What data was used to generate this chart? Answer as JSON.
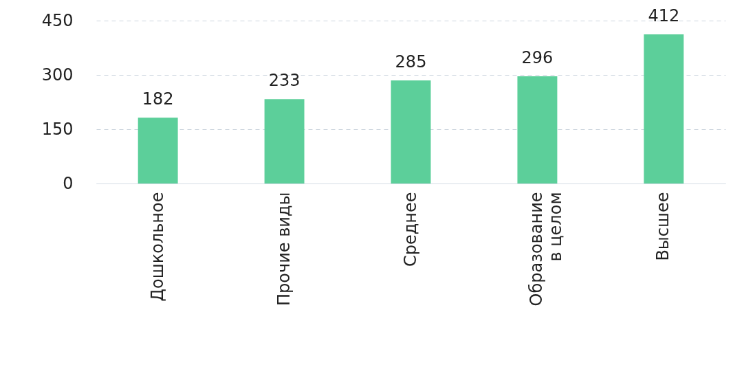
{
  "chart_data": {
    "type": "bar",
    "categories": [
      "Дошкольное",
      "Прочие виды",
      "Среднее",
      "Образование\nв целом",
      "Высшее"
    ],
    "values": [
      182,
      233,
      285,
      296,
      412
    ],
    "color": "#5ccf9a",
    "ylim": [
      0,
      450
    ],
    "yticks": [
      0,
      150,
      300,
      450
    ],
    "grid": "y",
    "data_labels": true
  }
}
